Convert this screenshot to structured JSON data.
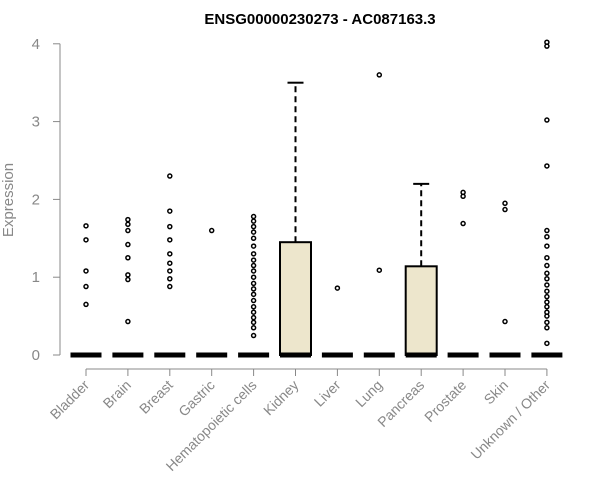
{
  "chart_data": {
    "type": "box",
    "title": "ENSG00000230273 - AC087163.3",
    "xlabel": "",
    "ylabel": "Expression",
    "ylim": [
      0,
      4
    ],
    "yticks": [
      0,
      1,
      2,
      3,
      4
    ],
    "grid": false,
    "colors": {
      "box_fill": "#ede6cc",
      "stroke": "#000000",
      "axis": "#888888",
      "text": "#888888"
    },
    "categories": [
      "Bladder",
      "Brain",
      "Breast",
      "Gastric",
      "Hematopoietic cells",
      "Kidney",
      "Liver",
      "Lung",
      "Pancreas",
      "Prostate",
      "Skin",
      "Unknown / Other"
    ],
    "boxes": [
      {
        "category": "Bladder",
        "q1": 0,
        "median": 0,
        "q3": 0,
        "whisker_low": 0,
        "whisker_high": 0,
        "outliers": [
          0.65,
          0.88,
          1.08,
          1.48,
          1.66
        ]
      },
      {
        "category": "Brain",
        "q1": 0,
        "median": 0,
        "q3": 0,
        "whisker_low": 0,
        "whisker_high": 0,
        "outliers": [
          0.43,
          0.97,
          1.03,
          1.25,
          1.42,
          1.6,
          1.68,
          1.74
        ]
      },
      {
        "category": "Breast",
        "q1": 0,
        "median": 0,
        "q3": 0,
        "whisker_low": 0,
        "whisker_high": 0,
        "outliers": [
          0.88,
          0.98,
          1.08,
          1.18,
          1.3,
          1.48,
          1.65,
          1.85,
          2.3
        ]
      },
      {
        "category": "Gastric",
        "q1": 0,
        "median": 0,
        "q3": 0,
        "whisker_low": 0,
        "whisker_high": 0,
        "outliers": [
          1.6
        ]
      },
      {
        "category": "Hematopoietic cells",
        "q1": 0,
        "median": 0,
        "q3": 0,
        "whisker_low": 0,
        "whisker_high": 0,
        "outliers": [
          0.25,
          0.35,
          0.42,
          0.48,
          0.55,
          0.62,
          0.7,
          0.78,
          0.85,
          0.92,
          1.0,
          1.08,
          1.15,
          1.22,
          1.3,
          1.4,
          1.5,
          1.58,
          1.65,
          1.72,
          1.78
        ]
      },
      {
        "category": "Kidney",
        "q1": 0,
        "median": 0,
        "q3": 1.45,
        "whisker_low": 0,
        "whisker_high": 3.5,
        "outliers": []
      },
      {
        "category": "Liver",
        "q1": 0,
        "median": 0,
        "q3": 0,
        "whisker_low": 0,
        "whisker_high": 0,
        "outliers": [
          0.86
        ]
      },
      {
        "category": "Lung",
        "q1": 0,
        "median": 0,
        "q3": 0,
        "whisker_low": 0,
        "whisker_high": 0,
        "outliers": [
          1.09,
          3.6
        ]
      },
      {
        "category": "Pancreas",
        "q1": 0,
        "median": 0,
        "q3": 1.14,
        "whisker_low": 0,
        "whisker_high": 2.2,
        "outliers": []
      },
      {
        "category": "Prostate",
        "q1": 0,
        "median": 0,
        "q3": 0,
        "whisker_low": 0,
        "whisker_high": 0,
        "outliers": [
          1.69,
          2.04,
          2.09
        ]
      },
      {
        "category": "Skin",
        "q1": 0,
        "median": 0,
        "q3": 0,
        "whisker_low": 0,
        "whisker_high": 0,
        "outliers": [
          0.43,
          1.87,
          1.95
        ]
      },
      {
        "category": "Unknown / Other",
        "q1": 0,
        "median": 0,
        "q3": 0,
        "whisker_low": 0,
        "whisker_high": 0,
        "outliers": [
          0.15,
          0.35,
          0.42,
          0.5,
          0.55,
          0.62,
          0.68,
          0.75,
          0.82,
          0.9,
          0.98,
          1.05,
          1.15,
          1.25,
          1.4,
          1.52,
          1.6,
          2.43,
          3.02,
          3.97,
          4.02
        ]
      }
    ]
  }
}
